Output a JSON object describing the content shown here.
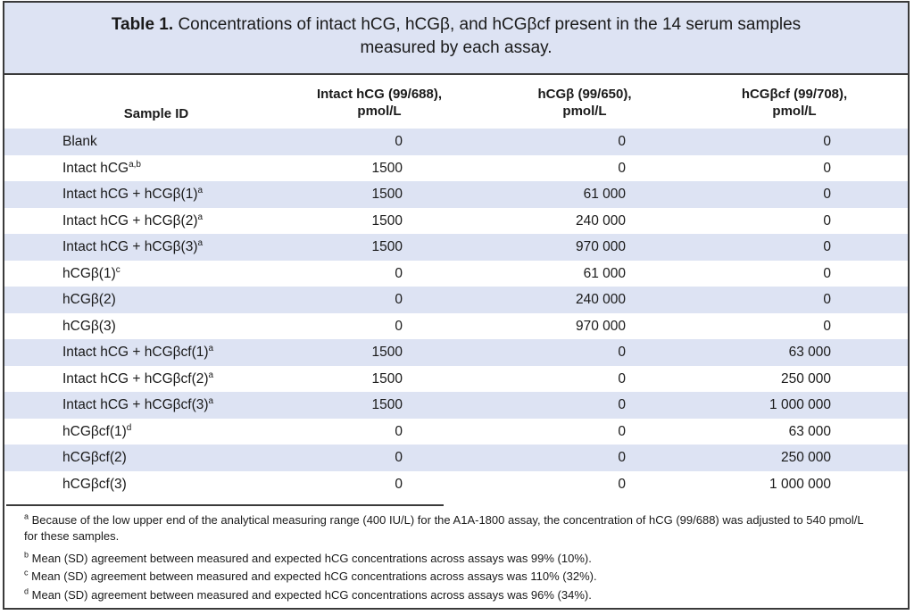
{
  "title": {
    "label": "Table 1.",
    "line1": "Concentrations of intact hCG, hCGβ, and hCGβcf present in the 14 serum samples",
    "line2": "measured by each assay."
  },
  "columns": {
    "sample_id": "Sample ID",
    "intact_l1": "Intact hCG (99/688),",
    "intact_l2": "pmol/L",
    "beta_l1": "hCGβ (99/650),",
    "beta_l2": "pmol/L",
    "betacf_l1": "hCGβcf (99/708),",
    "betacf_l2": "pmol/L"
  },
  "rows": [
    {
      "id": "Blank",
      "sup": "",
      "intact": "0",
      "beta": "0",
      "betacf": "0"
    },
    {
      "id": "Intact hCG",
      "sup": "a,b",
      "intact": "1500",
      "beta": "0",
      "betacf": "0"
    },
    {
      "id": "Intact hCG + hCGβ(1)",
      "sup": "a",
      "intact": "1500",
      "beta": "61 000",
      "betacf": "0"
    },
    {
      "id": "Intact hCG + hCGβ(2)",
      "sup": "a",
      "intact": "1500",
      "beta": "240 000",
      "betacf": "0"
    },
    {
      "id": "Intact hCG + hCGβ(3)",
      "sup": "a",
      "intact": "1500",
      "beta": "970 000",
      "betacf": "0"
    },
    {
      "id": "hCGβ(1)",
      "sup": "c",
      "intact": "0",
      "beta": "61 000",
      "betacf": "0"
    },
    {
      "id": "hCGβ(2)",
      "sup": "",
      "intact": "0",
      "beta": "240 000",
      "betacf": "0"
    },
    {
      "id": "hCGβ(3)",
      "sup": "",
      "intact": "0",
      "beta": "970 000",
      "betacf": "0"
    },
    {
      "id": "Intact hCG + hCGβcf(1)",
      "sup": "a",
      "intact": "1500",
      "beta": "0",
      "betacf": "63 000"
    },
    {
      "id": "Intact hCG + hCGβcf(2)",
      "sup": "a",
      "intact": "1500",
      "beta": "0",
      "betacf": "250 000"
    },
    {
      "id": "Intact hCG + hCGβcf(3)",
      "sup": "a",
      "intact": "1500",
      "beta": "0",
      "betacf": "1 000 000"
    },
    {
      "id": "hCGβcf(1)",
      "sup": "d",
      "intact": "0",
      "beta": "0",
      "betacf": "63 000"
    },
    {
      "id": "hCGβcf(2)",
      "sup": "",
      "intact": "0",
      "beta": "0",
      "betacf": "250 000"
    },
    {
      "id": "hCGβcf(3)",
      "sup": "",
      "intact": "0",
      "beta": "0",
      "betacf": "1 000 000"
    }
  ],
  "footnotes": [
    {
      "mark": "a",
      "line1": "Because of the low upper end of the analytical measuring range (400 IU/L) for the A1A-1800 assay, the concentration of hCG (99/688) was adjusted to 540 pmol/L",
      "line2": "for these samples."
    },
    {
      "mark": "b",
      "line1": "Mean (SD) agreement between measured and expected hCG concentrations across assays was 99% (10%).",
      "line2": ""
    },
    {
      "mark": "c",
      "line1": "Mean (SD) agreement between measured and expected hCG concentrations across assays was 110% (32%).",
      "line2": ""
    },
    {
      "mark": "d",
      "line1": "Mean (SD) agreement between measured and expected hCG concentrations across assays was 96% (34%).",
      "line2": ""
    }
  ],
  "colors": {
    "shade": "#dde3f3",
    "border": "#3a3a3a"
  }
}
